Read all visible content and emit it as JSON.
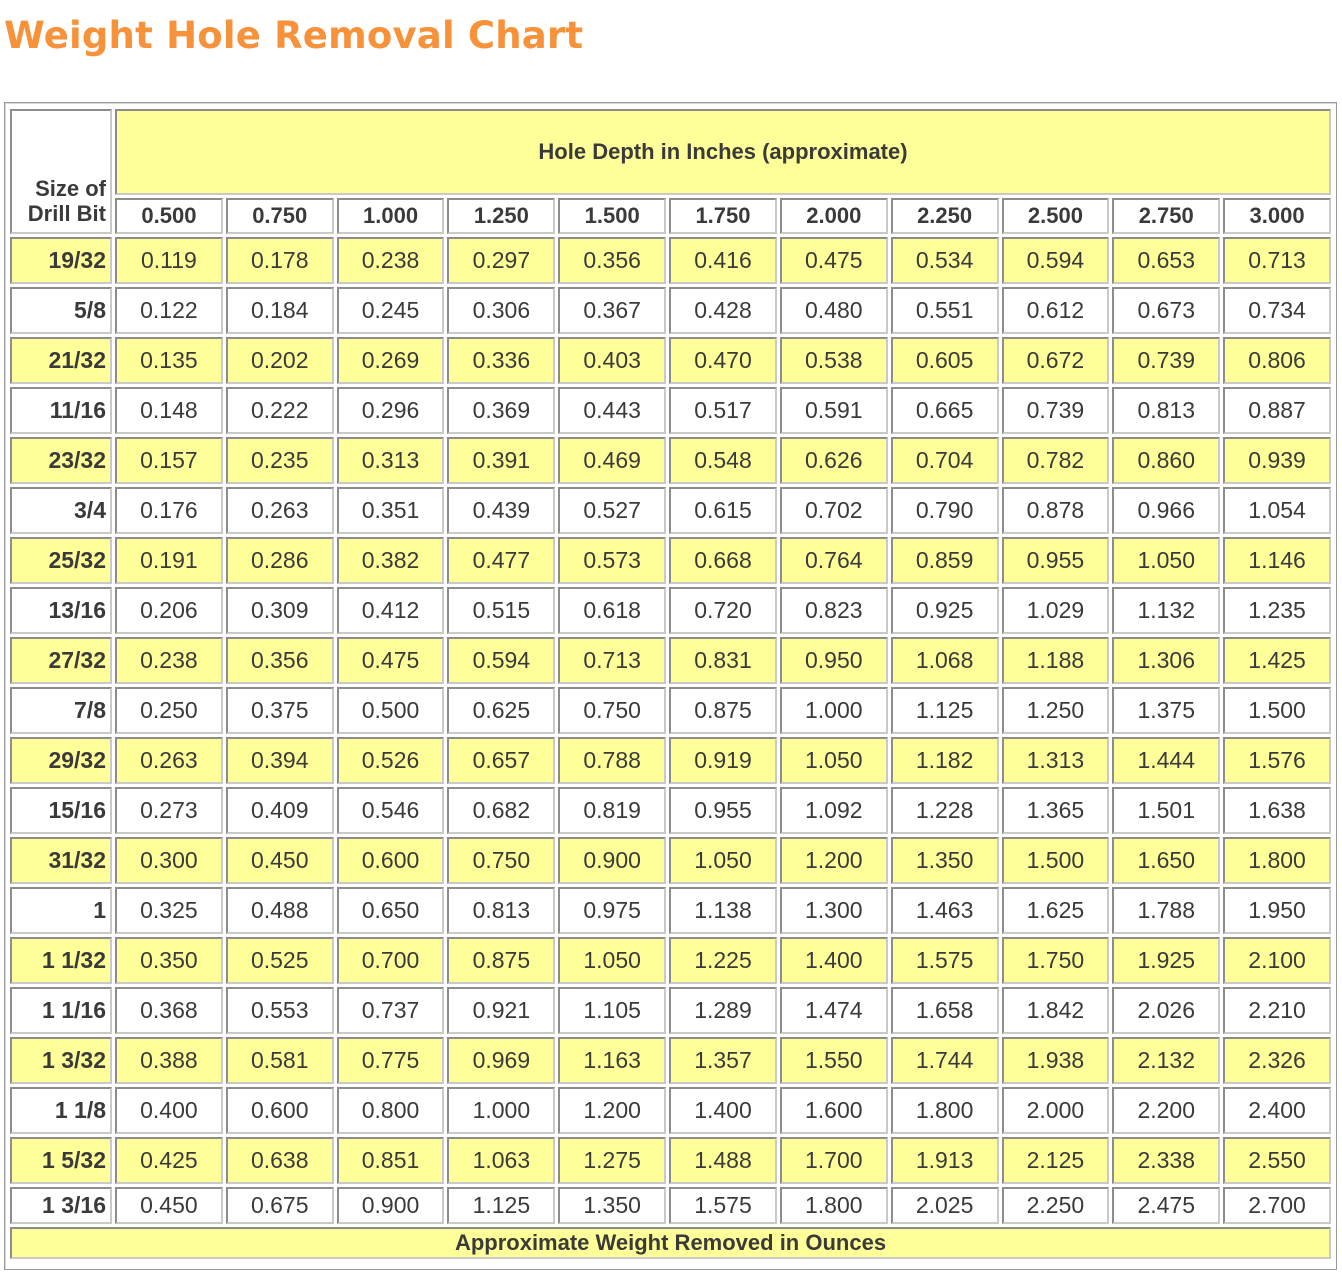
{
  "title": "Weight Hole Removal Chart",
  "table": {
    "corner_label_line1": "Size of",
    "corner_label_line2": "Drill Bit",
    "depth_header": "Hole Depth in Inches (approximate)",
    "footer": "Approximate Weight Removed in Ounces",
    "depths": [
      "0.500",
      "0.750",
      "1.000",
      "1.250",
      "1.500",
      "1.750",
      "2.000",
      "2.250",
      "2.500",
      "2.750",
      "3.000"
    ],
    "rows": [
      {
        "size": "19/32",
        "values": [
          "0.119",
          "0.178",
          "0.238",
          "0.297",
          "0.356",
          "0.416",
          "0.475",
          "0.534",
          "0.594",
          "0.653",
          "0.713"
        ]
      },
      {
        "size": "5/8",
        "values": [
          "0.122",
          "0.184",
          "0.245",
          "0.306",
          "0.367",
          "0.428",
          "0.480",
          "0.551",
          "0.612",
          "0.673",
          "0.734"
        ]
      },
      {
        "size": "21/32",
        "values": [
          "0.135",
          "0.202",
          "0.269",
          "0.336",
          "0.403",
          "0.470",
          "0.538",
          "0.605",
          "0.672",
          "0.739",
          "0.806"
        ]
      },
      {
        "size": "11/16",
        "values": [
          "0.148",
          "0.222",
          "0.296",
          "0.369",
          "0.443",
          "0.517",
          "0.591",
          "0.665",
          "0.739",
          "0.813",
          "0.887"
        ]
      },
      {
        "size": "23/32",
        "values": [
          "0.157",
          "0.235",
          "0.313",
          "0.391",
          "0.469",
          "0.548",
          "0.626",
          "0.704",
          "0.782",
          "0.860",
          "0.939"
        ]
      },
      {
        "size": "3/4",
        "values": [
          "0.176",
          "0.263",
          "0.351",
          "0.439",
          "0.527",
          "0.615",
          "0.702",
          "0.790",
          "0.878",
          "0.966",
          "1.054"
        ]
      },
      {
        "size": "25/32",
        "values": [
          "0.191",
          "0.286",
          "0.382",
          "0.477",
          "0.573",
          "0.668",
          "0.764",
          "0.859",
          "0.955",
          "1.050",
          "1.146"
        ]
      },
      {
        "size": "13/16",
        "values": [
          "0.206",
          "0.309",
          "0.412",
          "0.515",
          "0.618",
          "0.720",
          "0.823",
          "0.925",
          "1.029",
          "1.132",
          "1.235"
        ]
      },
      {
        "size": "27/32",
        "values": [
          "0.238",
          "0.356",
          "0.475",
          "0.594",
          "0.713",
          "0.831",
          "0.950",
          "1.068",
          "1.188",
          "1.306",
          "1.425"
        ]
      },
      {
        "size": "7/8",
        "values": [
          "0.250",
          "0.375",
          "0.500",
          "0.625",
          "0.750",
          "0.875",
          "1.000",
          "1.125",
          "1.250",
          "1.375",
          "1.500"
        ]
      },
      {
        "size": "29/32",
        "values": [
          "0.263",
          "0.394",
          "0.526",
          "0.657",
          "0.788",
          "0.919",
          "1.050",
          "1.182",
          "1.313",
          "1.444",
          "1.576"
        ]
      },
      {
        "size": "15/16",
        "values": [
          "0.273",
          "0.409",
          "0.546",
          "0.682",
          "0.819",
          "0.955",
          "1.092",
          "1.228",
          "1.365",
          "1.501",
          "1.638"
        ]
      },
      {
        "size": "31/32",
        "values": [
          "0.300",
          "0.450",
          "0.600",
          "0.750",
          "0.900",
          "1.050",
          "1.200",
          "1.350",
          "1.500",
          "1.650",
          "1.800"
        ]
      },
      {
        "size": "1",
        "values": [
          "0.325",
          "0.488",
          "0.650",
          "0.813",
          "0.975",
          "1.138",
          "1.300",
          "1.463",
          "1.625",
          "1.788",
          "1.950"
        ]
      },
      {
        "size": "1 1/32",
        "values": [
          "0.350",
          "0.525",
          "0.700",
          "0.875",
          "1.050",
          "1.225",
          "1.400",
          "1.575",
          "1.750",
          "1.925",
          "2.100"
        ]
      },
      {
        "size": "1 1/16",
        "values": [
          "0.368",
          "0.553",
          "0.737",
          "0.921",
          "1.105",
          "1.289",
          "1.474",
          "1.658",
          "1.842",
          "2.026",
          "2.210"
        ]
      },
      {
        "size": "1 3/32",
        "values": [
          "0.388",
          "0.581",
          "0.775",
          "0.969",
          "1.163",
          "1.357",
          "1.550",
          "1.744",
          "1.938",
          "2.132",
          "2.326"
        ]
      },
      {
        "size": "1 1/8",
        "values": [
          "0.400",
          "0.600",
          "0.800",
          "1.000",
          "1.200",
          "1.400",
          "1.600",
          "1.800",
          "2.000",
          "2.200",
          "2.400"
        ]
      },
      {
        "size": "1 5/32",
        "values": [
          "0.425",
          "0.638",
          "0.851",
          "1.063",
          "1.275",
          "1.488",
          "1.700",
          "1.913",
          "2.125",
          "2.338",
          "2.550"
        ]
      },
      {
        "size": "1 3/16",
        "values": [
          "0.450",
          "0.675",
          "0.900",
          "1.125",
          "1.350",
          "1.575",
          "1.800",
          "2.025",
          "2.250",
          "2.475",
          "2.700"
        ]
      }
    ]
  },
  "colors": {
    "title": "#f7923a",
    "band": "#ffff99"
  }
}
